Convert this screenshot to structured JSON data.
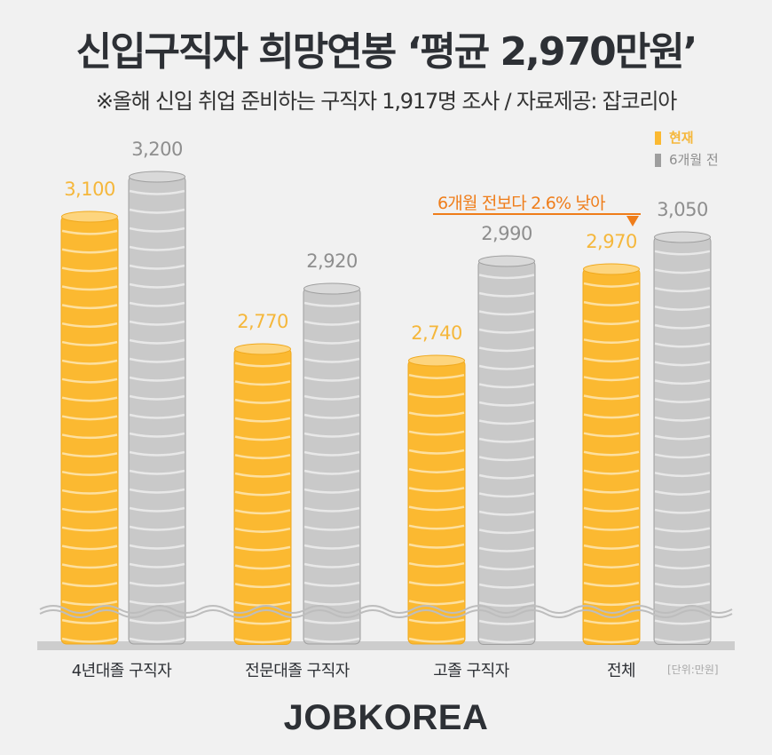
{
  "header": {
    "title": "신입구직자 희망연봉 ‘평균 2,970만원’",
    "subtitle": "※올해 신입 취업 준비하는 구직자 1,917명 조사  / 자료제공: 잡코리아"
  },
  "legend": {
    "items": [
      {
        "label": "현재",
        "color": "#fbb931"
      },
      {
        "label": "6개월 전",
        "color": "#9e9e9e"
      }
    ]
  },
  "annotation": {
    "text": "6개월 전보다 2.6% 낮아",
    "color": "#ef7d1a"
  },
  "unit_label": "[단위:만원]",
  "brand": "JOBKOREA",
  "colors": {
    "current_coin": "#fbb931",
    "current_coin_top": "#fdd57e",
    "current_coin_line": "#fde0a0",
    "current_coin_edge": "#f0a91e",
    "previous_coin": "#c9c9c9",
    "previous_coin_top": "#d9d9d9",
    "previous_coin_line": "#e8e8e8",
    "previous_coin_edge": "#9e9e9e",
    "current_label": "#f5b73b",
    "previous_label": "#8e8e8e",
    "background": "#f1f1f1"
  },
  "chart_data": {
    "type": "bar",
    "title": "신입구직자 희망연봉 ‘평균 2,970만원’",
    "subtitle": "※올해 신입 취업 준비하는 구직자 1,917명 조사  / 자료제공: 잡코리아",
    "categories": [
      "4년대졸 구직자",
      "전문대졸 구직자",
      "고졸 구직자",
      "전체"
    ],
    "series": [
      {
        "name": "현재",
        "values": [
          3100,
          2770,
          2740,
          2970
        ]
      },
      {
        "name": "6개월 전",
        "values": [
          3200,
          2920,
          2990,
          3050
        ]
      }
    ],
    "value_labels": {
      "현재": [
        "3,100",
        "2,770",
        "2,740",
        "2,970"
      ],
      "6개월 전": [
        "3,200",
        "2,920",
        "2,990",
        "3,050"
      ]
    },
    "annotations": [
      {
        "category": "전체",
        "series": "현재",
        "text": "6개월 전보다 2.6% 낮아"
      }
    ],
    "xlabel": "",
    "ylabel": "",
    "unit": "[단위:만원]",
    "axis_break": true,
    "grid": false,
    "legend_position": "top-right"
  }
}
